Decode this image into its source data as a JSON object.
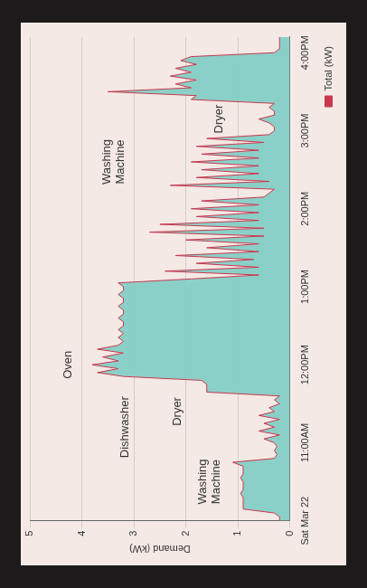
{
  "chart_data": {
    "type": "area",
    "y_label": "Demand (kW)",
    "x": [
      10,
      10.05,
      10.1,
      10.15,
      10.2,
      10.25,
      10.3,
      10.35,
      10.4,
      10.45,
      10.5,
      10.55,
      10.6,
      10.65,
      10.7,
      10.75,
      10.8,
      10.85,
      10.9,
      10.95,
      11,
      11.05,
      11.1,
      11.15,
      11.2,
      11.25,
      11.3,
      11.35,
      11.4,
      11.45,
      11.5,
      11.55,
      11.6,
      11.65,
      11.7,
      11.75,
      11.8,
      11.85,
      11.9,
      11.95,
      12,
      12.05,
      12.1,
      12.15,
      12.2,
      12.25,
      12.3,
      12.35,
      12.4,
      12.45,
      12.5,
      12.55,
      12.6,
      12.65,
      12.7,
      12.75,
      12.8,
      12.85,
      12.9,
      12.95,
      13,
      13.05,
      13.1,
      13.15,
      13.2,
      13.25,
      13.3,
      13.35,
      13.4,
      13.45,
      13.5,
      13.55,
      13.6,
      13.65,
      13.7,
      13.75,
      13.8,
      13.85,
      13.9,
      13.95,
      14,
      14.05,
      14.1,
      14.15,
      14.2,
      14.25,
      14.3,
      14.35,
      14.4,
      14.45,
      14.5,
      14.55,
      14.6,
      14.65,
      14.7,
      14.75,
      14.8,
      14.85,
      14.9,
      14.95,
      15,
      15.05,
      15.1,
      15.15,
      15.2,
      15.25,
      15.3,
      15.35,
      15.4,
      15.45,
      15.5,
      15.55,
      15.6,
      15.65,
      15.7,
      15.75,
      15.8,
      15.85,
      15.9,
      15.95,
      16,
      16.05,
      16.1,
      16.15,
      16.2
    ],
    "series": [
      {
        "name": "Total (kW)",
        "color": "#c8384f",
        "values": [
          0.2,
          0.2,
          0.3,
          0.9,
          0.9,
          0.9,
          0.9,
          0.95,
          0.9,
          0.9,
          0.9,
          0.95,
          0.9,
          0.9,
          0.9,
          1.1,
          0.3,
          0.25,
          0.3,
          0.25,
          0.3,
          0.5,
          0.2,
          0.6,
          0.3,
          0.5,
          0.2,
          0.6,
          0.3,
          0.4,
          0.2,
          0.3,
          0.2,
          1.6,
          1.6,
          1.6,
          1.7,
          3.2,
          3.7,
          3.3,
          3.8,
          3.3,
          3.6,
          3.2,
          3.7,
          3.3,
          3.2,
          3.3,
          3.2,
          3.3,
          3.2,
          3.2,
          3.3,
          3.2,
          3.2,
          3.3,
          3.2,
          3.2,
          3.3,
          3.2,
          3.2,
          3.3,
          1.9,
          0.6,
          2.4,
          0.6,
          1.8,
          0.7,
          2.2,
          0.6,
          1.6,
          0.6,
          2.0,
          0.5,
          2.7,
          0.5,
          2.5,
          0.6,
          1.8,
          0.6,
          1.9,
          0.6,
          1.7,
          0.5,
          0.4,
          0.3,
          2.3,
          0.4,
          1.8,
          0.6,
          1.7,
          0.6,
          1.9,
          0.6,
          1.7,
          0.6,
          1.8,
          0.5,
          1.6,
          0.4,
          0.3,
          0.3,
          0.4,
          0.6,
          0.3,
          0.3,
          0.4,
          0.3,
          1.9,
          1.8,
          3.5,
          1.9,
          2.2,
          1.8,
          2.3,
          1.9,
          2.2,
          1.8,
          2.1,
          1.9,
          0.3,
          0.2,
          0.2,
          0.2,
          0.2
        ]
      }
    ],
    "xlim": [
      10,
      16.2
    ],
    "xticks": [
      {
        "value": 10,
        "label": "Sat Mar 22"
      },
      {
        "value": 11,
        "label": "11:00AM"
      },
      {
        "value": 12,
        "label": "12:00PM"
      },
      {
        "value": 13,
        "label": "1:00PM"
      },
      {
        "value": 14,
        "label": "2:00PM"
      },
      {
        "value": 15,
        "label": "3:00PM"
      },
      {
        "value": 16,
        "label": "4:00PM"
      }
    ],
    "ylim": [
      0,
      5
    ],
    "yticks": [
      0,
      1,
      2,
      3,
      4,
      5
    ],
    "grid": true,
    "legend": "bottom-right",
    "annotations": [
      {
        "text": "Washing Machine",
        "x": 10.5,
        "y": 1.35
      },
      {
        "text": "Dishwasher",
        "x": 11.2,
        "y": 3.1
      },
      {
        "text": "Dryer",
        "x": 11.4,
        "y": 2.1
      },
      {
        "text": "Oven",
        "x": 12.0,
        "y": 4.2
      },
      {
        "text": "Washing Machine",
        "x": 14.6,
        "y": 3.2
      },
      {
        "text": "Dryer",
        "x": 15.15,
        "y": 1.3
      }
    ]
  }
}
